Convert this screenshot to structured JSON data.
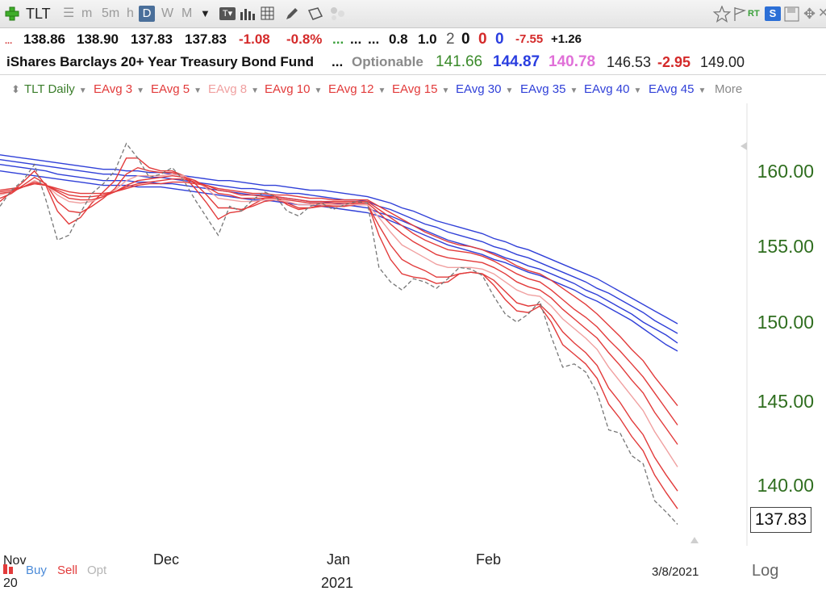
{
  "toolbar": {
    "ticker": "TLT",
    "periods": [
      "m",
      "5m",
      "h",
      "D",
      "W",
      "M"
    ],
    "selected_period": "D",
    "rt_label": "RT",
    "s_label": "S",
    "icons": [
      "add-symbol-icon",
      "grid-icon",
      "bar-chart-icon",
      "table-icon",
      "pencil-icon",
      "tag-icon",
      "star-icon",
      "flag-icon",
      "rt-icon",
      "layout-icon",
      "save-icon",
      "move-icon",
      "close-icon"
    ]
  },
  "quote": {
    "dots_red": "...",
    "open": "138.86",
    "high": "138.90",
    "low": "137.83",
    "close": "137.83",
    "change": "-1.08",
    "change_pct": "-0.8%",
    "dots_green": "...",
    "dots_a": "...",
    "dots_b": "...",
    "val_a": "0.8",
    "val_b": "1.0",
    "count_grey": "2",
    "count_black": "0",
    "count_red": "0",
    "count_blue": "0",
    "val_c": "-7.55",
    "val_d": "+1.26",
    "name": "iShares Barclays 20+ Year Treasury Bond Fund",
    "dots_c": "...",
    "optionable": "Optionable",
    "v1": "141.66",
    "v2": "144.87",
    "v3": "140.78",
    "v4": "146.53",
    "v5": "-2.95",
    "v6": "149.00"
  },
  "legend": {
    "items": [
      {
        "label": "TLT Daily",
        "color": "#3a7d2a"
      },
      {
        "label": "EAvg 3",
        "color": "#e23b3b"
      },
      {
        "label": "EAvg 5",
        "color": "#e23b3b"
      },
      {
        "label": "EAvg 8",
        "color": "#f0a0a0"
      },
      {
        "label": "EAvg 10",
        "color": "#e23b3b"
      },
      {
        "label": "EAvg 12",
        "color": "#e23b3b"
      },
      {
        "label": "EAvg 15",
        "color": "#e23b3b"
      },
      {
        "label": "EAvg 30",
        "color": "#3040d8"
      },
      {
        "label": "EAvg 35",
        "color": "#3040d8"
      },
      {
        "label": "EAvg 40",
        "color": "#3040d8"
      },
      {
        "label": "EAvg 45",
        "color": "#3040d8"
      },
      {
        "label": "More",
        "color": "#888888"
      }
    ]
  },
  "chart_data": {
    "type": "line",
    "title": "",
    "xlabel": "",
    "ylabel": "",
    "x_ticks": [
      "Nov 20",
      "Dec",
      "Jan 2021",
      "Feb",
      "3/8/2021"
    ],
    "y_ticks": [
      "160.00",
      "155.00",
      "150.00",
      "145.00",
      "140.00"
    ],
    "ylim": [
      136.5,
      164
    ],
    "last_price": "137.83",
    "grid": false,
    "legend_position": "top",
    "axis_scale_label": "Log",
    "series": [
      {
        "name": "TLT Daily",
        "style": "dashed",
        "color": "#777777",
        "values": [
          157.6,
          158.6,
          159.2,
          160.2,
          158.0,
          155.5,
          155.8,
          157.2,
          158.4,
          159.0,
          159.8,
          161.5,
          160.6,
          159.4,
          159.6,
          160.0,
          159.2,
          158.0,
          156.9,
          155.8,
          157.6,
          157.3,
          158.0,
          158.5,
          158.2,
          157.3,
          157.0,
          157.6,
          157.8,
          157.4,
          157.7,
          157.9,
          157.8,
          153.8,
          152.9,
          152.4,
          153.1,
          152.9,
          152.5,
          153.1,
          153.8,
          153.7,
          153.3,
          152.0,
          150.9,
          150.4,
          150.9,
          151.7,
          149.5,
          147.6,
          147.8,
          147.3,
          146.0,
          143.7,
          143.5,
          142.1,
          141.6,
          139.3,
          138.6,
          137.83
        ]
      },
      {
        "name": "EAvg 3",
        "color": "#e23b3b",
        "values": [
          157.9,
          158.5,
          159.1,
          159.8,
          158.9,
          157.3,
          156.5,
          156.9,
          157.8,
          158.5,
          159.2,
          160.6,
          160.6,
          160.0,
          159.8,
          159.8,
          159.5,
          158.7,
          157.8,
          156.8,
          157.2,
          157.3,
          157.7,
          158.1,
          158.2,
          157.7,
          157.4,
          157.5,
          157.7,
          157.6,
          157.6,
          157.8,
          157.8,
          155.8,
          154.3,
          153.4,
          153.2,
          153.1,
          152.8,
          152.9,
          153.4,
          153.5,
          153.4,
          152.7,
          151.8,
          151.1,
          151.0,
          151.4,
          150.4,
          149.0,
          148.4,
          147.8,
          146.9,
          145.3,
          144.4,
          143.3,
          142.4,
          140.9,
          139.8,
          138.8
        ]
      },
      {
        "name": "EAvg 5",
        "color": "#e23b3b",
        "values": [
          158.1,
          158.4,
          158.9,
          159.4,
          159.0,
          157.9,
          157.3,
          157.2,
          157.6,
          158.1,
          158.7,
          159.6,
          160.0,
          159.8,
          159.7,
          159.7,
          159.5,
          159.0,
          158.3,
          157.5,
          157.5,
          157.4,
          157.6,
          157.9,
          158.0,
          157.8,
          157.5,
          157.5,
          157.6,
          157.6,
          157.6,
          157.7,
          157.7,
          156.4,
          155.2,
          154.3,
          153.9,
          153.6,
          153.2,
          153.2,
          153.4,
          153.5,
          153.4,
          153.0,
          152.3,
          151.6,
          151.4,
          151.5,
          150.8,
          149.8,
          149.1,
          148.5,
          147.7,
          146.3,
          145.4,
          144.3,
          143.4,
          142.0,
          140.9,
          139.9
        ]
      },
      {
        "name": "EAvg 8",
        "color": "#f0a0a0",
        "values": [
          158.3,
          158.5,
          158.8,
          159.2,
          158.9,
          158.3,
          157.9,
          157.8,
          157.9,
          158.2,
          158.6,
          159.2,
          159.5,
          159.5,
          159.5,
          159.6,
          159.5,
          159.2,
          158.7,
          158.1,
          158.0,
          157.9,
          157.9,
          158.0,
          158.0,
          157.9,
          157.7,
          157.7,
          157.7,
          157.7,
          157.7,
          157.7,
          157.7,
          156.9,
          156.0,
          155.2,
          154.8,
          154.4,
          154.0,
          153.8,
          153.8,
          153.8,
          153.7,
          153.4,
          152.9,
          152.4,
          152.1,
          152.0,
          151.4,
          150.6,
          150.0,
          149.4,
          148.7,
          147.6,
          146.7,
          145.8,
          144.9,
          143.6,
          142.5,
          141.4
        ]
      },
      {
        "name": "EAvg 10",
        "color": "#e23b3b",
        "values": [
          158.4,
          158.5,
          158.8,
          159.1,
          158.9,
          158.5,
          158.1,
          158.0,
          158.0,
          158.2,
          158.5,
          158.9,
          159.2,
          159.3,
          159.4,
          159.5,
          159.4,
          159.2,
          158.8,
          158.4,
          158.3,
          158.1,
          158.1,
          158.1,
          158.1,
          158.0,
          157.9,
          157.8,
          157.8,
          157.8,
          157.8,
          157.8,
          157.8,
          157.2,
          156.5,
          155.9,
          155.4,
          155.0,
          154.6,
          154.4,
          154.3,
          154.2,
          154.1,
          153.8,
          153.4,
          152.9,
          152.6,
          152.4,
          151.9,
          151.2,
          150.6,
          150.0,
          149.4,
          148.5,
          147.7,
          146.8,
          146.0,
          144.8,
          143.8,
          142.8
        ]
      },
      {
        "name": "EAvg 12",
        "color": "#e23b3b",
        "values": [
          158.5,
          158.6,
          158.8,
          159.0,
          158.9,
          158.6,
          158.3,
          158.2,
          158.2,
          158.3,
          158.5,
          158.8,
          159.0,
          159.1,
          159.2,
          159.3,
          159.3,
          159.1,
          158.9,
          158.6,
          158.5,
          158.3,
          158.3,
          158.2,
          158.2,
          158.1,
          158.0,
          157.9,
          157.9,
          157.9,
          157.9,
          157.9,
          157.9,
          157.4,
          156.9,
          156.4,
          155.9,
          155.5,
          155.2,
          154.9,
          154.8,
          154.7,
          154.5,
          154.2,
          153.8,
          153.4,
          153.1,
          152.9,
          152.4,
          151.8,
          151.2,
          150.7,
          150.1,
          149.3,
          148.6,
          147.8,
          147.0,
          146.0,
          145.0,
          144.0
        ]
      },
      {
        "name": "EAvg 15",
        "color": "#e23b3b",
        "values": [
          158.6,
          158.7,
          158.8,
          159.0,
          158.9,
          158.7,
          158.5,
          158.4,
          158.4,
          158.4,
          158.5,
          158.7,
          158.9,
          159.0,
          159.0,
          159.1,
          159.1,
          159.0,
          158.9,
          158.7,
          158.6,
          158.5,
          158.4,
          158.4,
          158.3,
          158.3,
          158.2,
          158.1,
          158.1,
          158.0,
          158.0,
          158.0,
          158.0,
          157.6,
          157.2,
          156.8,
          156.4,
          156.0,
          155.7,
          155.4,
          155.2,
          155.1,
          154.9,
          154.6,
          154.3,
          153.9,
          153.6,
          153.4,
          153.0,
          152.5,
          152.0,
          151.5,
          150.9,
          150.2,
          149.5,
          148.7,
          148.0,
          147.0,
          146.1,
          145.2
        ]
      },
      {
        "name": "EAvg 30",
        "color": "#3040d8",
        "values": [
          159.8,
          159.7,
          159.6,
          159.5,
          159.4,
          159.3,
          159.2,
          159.1,
          159.0,
          158.9,
          158.9,
          158.9,
          158.8,
          158.8,
          158.8,
          158.7,
          158.6,
          158.5,
          158.4,
          158.3,
          158.2,
          158.1,
          158.0,
          158.0,
          157.9,
          157.8,
          157.7,
          157.7,
          157.6,
          157.5,
          157.4,
          157.3,
          157.2,
          157.0,
          156.7,
          156.4,
          156.1,
          155.8,
          155.5,
          155.2,
          155.0,
          154.8,
          154.6,
          154.3,
          154.1,
          153.8,
          153.5,
          153.3,
          153.0,
          152.7,
          152.4,
          152.0,
          151.7,
          151.3,
          150.9,
          150.5,
          150.0,
          149.5,
          149.0,
          148.6
        ]
      },
      {
        "name": "EAvg 35",
        "color": "#3040d8",
        "values": [
          160.2,
          160.1,
          160.0,
          159.9,
          159.8,
          159.6,
          159.5,
          159.4,
          159.3,
          159.2,
          159.2,
          159.2,
          159.1,
          159.1,
          159.0,
          159.0,
          158.9,
          158.8,
          158.7,
          158.6,
          158.5,
          158.4,
          158.3,
          158.3,
          158.2,
          158.1,
          158.0,
          157.9,
          157.9,
          157.8,
          157.7,
          157.6,
          157.5,
          157.2,
          157.0,
          156.7,
          156.4,
          156.1,
          155.8,
          155.5,
          155.3,
          155.1,
          154.9,
          154.7,
          154.4,
          154.2,
          153.9,
          153.7,
          153.4,
          153.1,
          152.8,
          152.4,
          152.1,
          151.7,
          151.3,
          150.9,
          150.4,
          150.0,
          149.6,
          149.1
        ]
      },
      {
        "name": "EAvg 40",
        "color": "#3040d8",
        "values": [
          160.5,
          160.4,
          160.3,
          160.2,
          160.1,
          160.0,
          159.9,
          159.8,
          159.7,
          159.6,
          159.6,
          159.5,
          159.5,
          159.4,
          159.4,
          159.3,
          159.2,
          159.1,
          159.0,
          158.9,
          158.8,
          158.7,
          158.7,
          158.6,
          158.5,
          158.4,
          158.4,
          158.3,
          158.2,
          158.1,
          158.0,
          158.0,
          157.9,
          157.6,
          157.4,
          157.1,
          156.8,
          156.5,
          156.3,
          156.0,
          155.8,
          155.6,
          155.4,
          155.1,
          154.9,
          154.6,
          154.4,
          154.1,
          153.8,
          153.5,
          153.2,
          152.9,
          152.5,
          152.2,
          151.8,
          151.4,
          151.0,
          150.5,
          150.1,
          149.7
        ]
      },
      {
        "name": "EAvg 45",
        "color": "#3040d8",
        "values": [
          160.8,
          160.7,
          160.6,
          160.5,
          160.4,
          160.3,
          160.2,
          160.1,
          160.0,
          159.9,
          159.9,
          159.8,
          159.8,
          159.7,
          159.7,
          159.6,
          159.5,
          159.4,
          159.3,
          159.2,
          159.2,
          159.1,
          159.0,
          158.9,
          158.9,
          158.8,
          158.7,
          158.6,
          158.6,
          158.5,
          158.4,
          158.3,
          158.2,
          158.0,
          157.8,
          157.5,
          157.3,
          157.0,
          156.7,
          156.5,
          156.3,
          156.1,
          155.9,
          155.6,
          155.4,
          155.1,
          154.9,
          154.6,
          154.3,
          154.0,
          153.7,
          153.4,
          153.1,
          152.7,
          152.3,
          151.9,
          151.5,
          151.1,
          150.7,
          150.3
        ]
      }
    ]
  },
  "bottom": {
    "buy": "Buy",
    "sell": "Sell",
    "opt": "Opt",
    "year": "2021",
    "x_prefix": "Nov",
    "x_prefix_day": "20"
  }
}
